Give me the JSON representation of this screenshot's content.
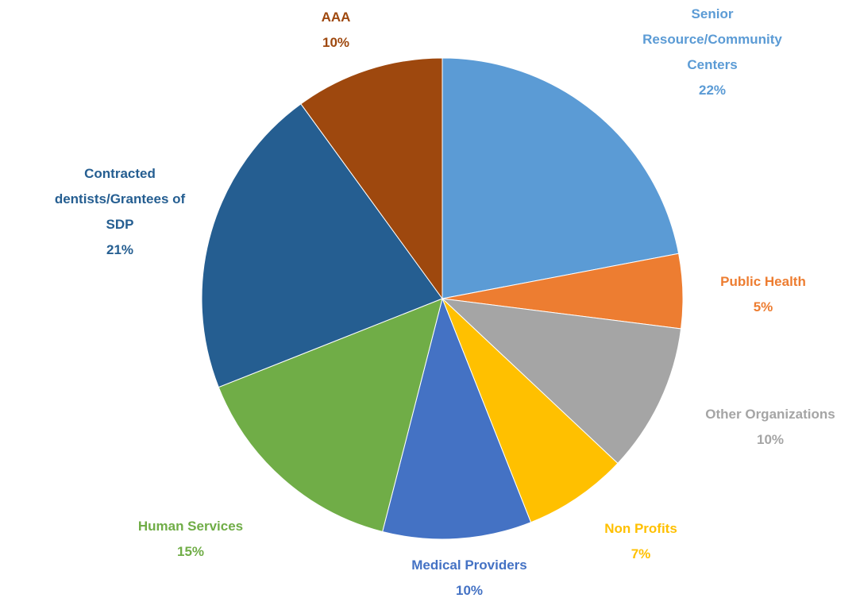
{
  "chart_data": {
    "type": "pie",
    "categories": [
      "Senior Resource/Community Centers",
      "Public Health",
      "Other Organizations",
      "Non Profits",
      "Medical Providers",
      "Human Services",
      "Contracted dentists/Grantees of SDP",
      "AAA"
    ],
    "values": [
      22,
      5,
      10,
      7,
      10,
      15,
      21,
      10
    ],
    "value_labels": [
      "22%",
      "5%",
      "10%",
      "7%",
      "10%",
      "15%",
      "21%",
      "10%"
    ],
    "colors": [
      "#5b9bd5",
      "#ed7d31",
      "#a5a5a5",
      "#ffc000",
      "#4472c4",
      "#70ad47",
      "#255e91",
      "#9e480e"
    ]
  }
}
